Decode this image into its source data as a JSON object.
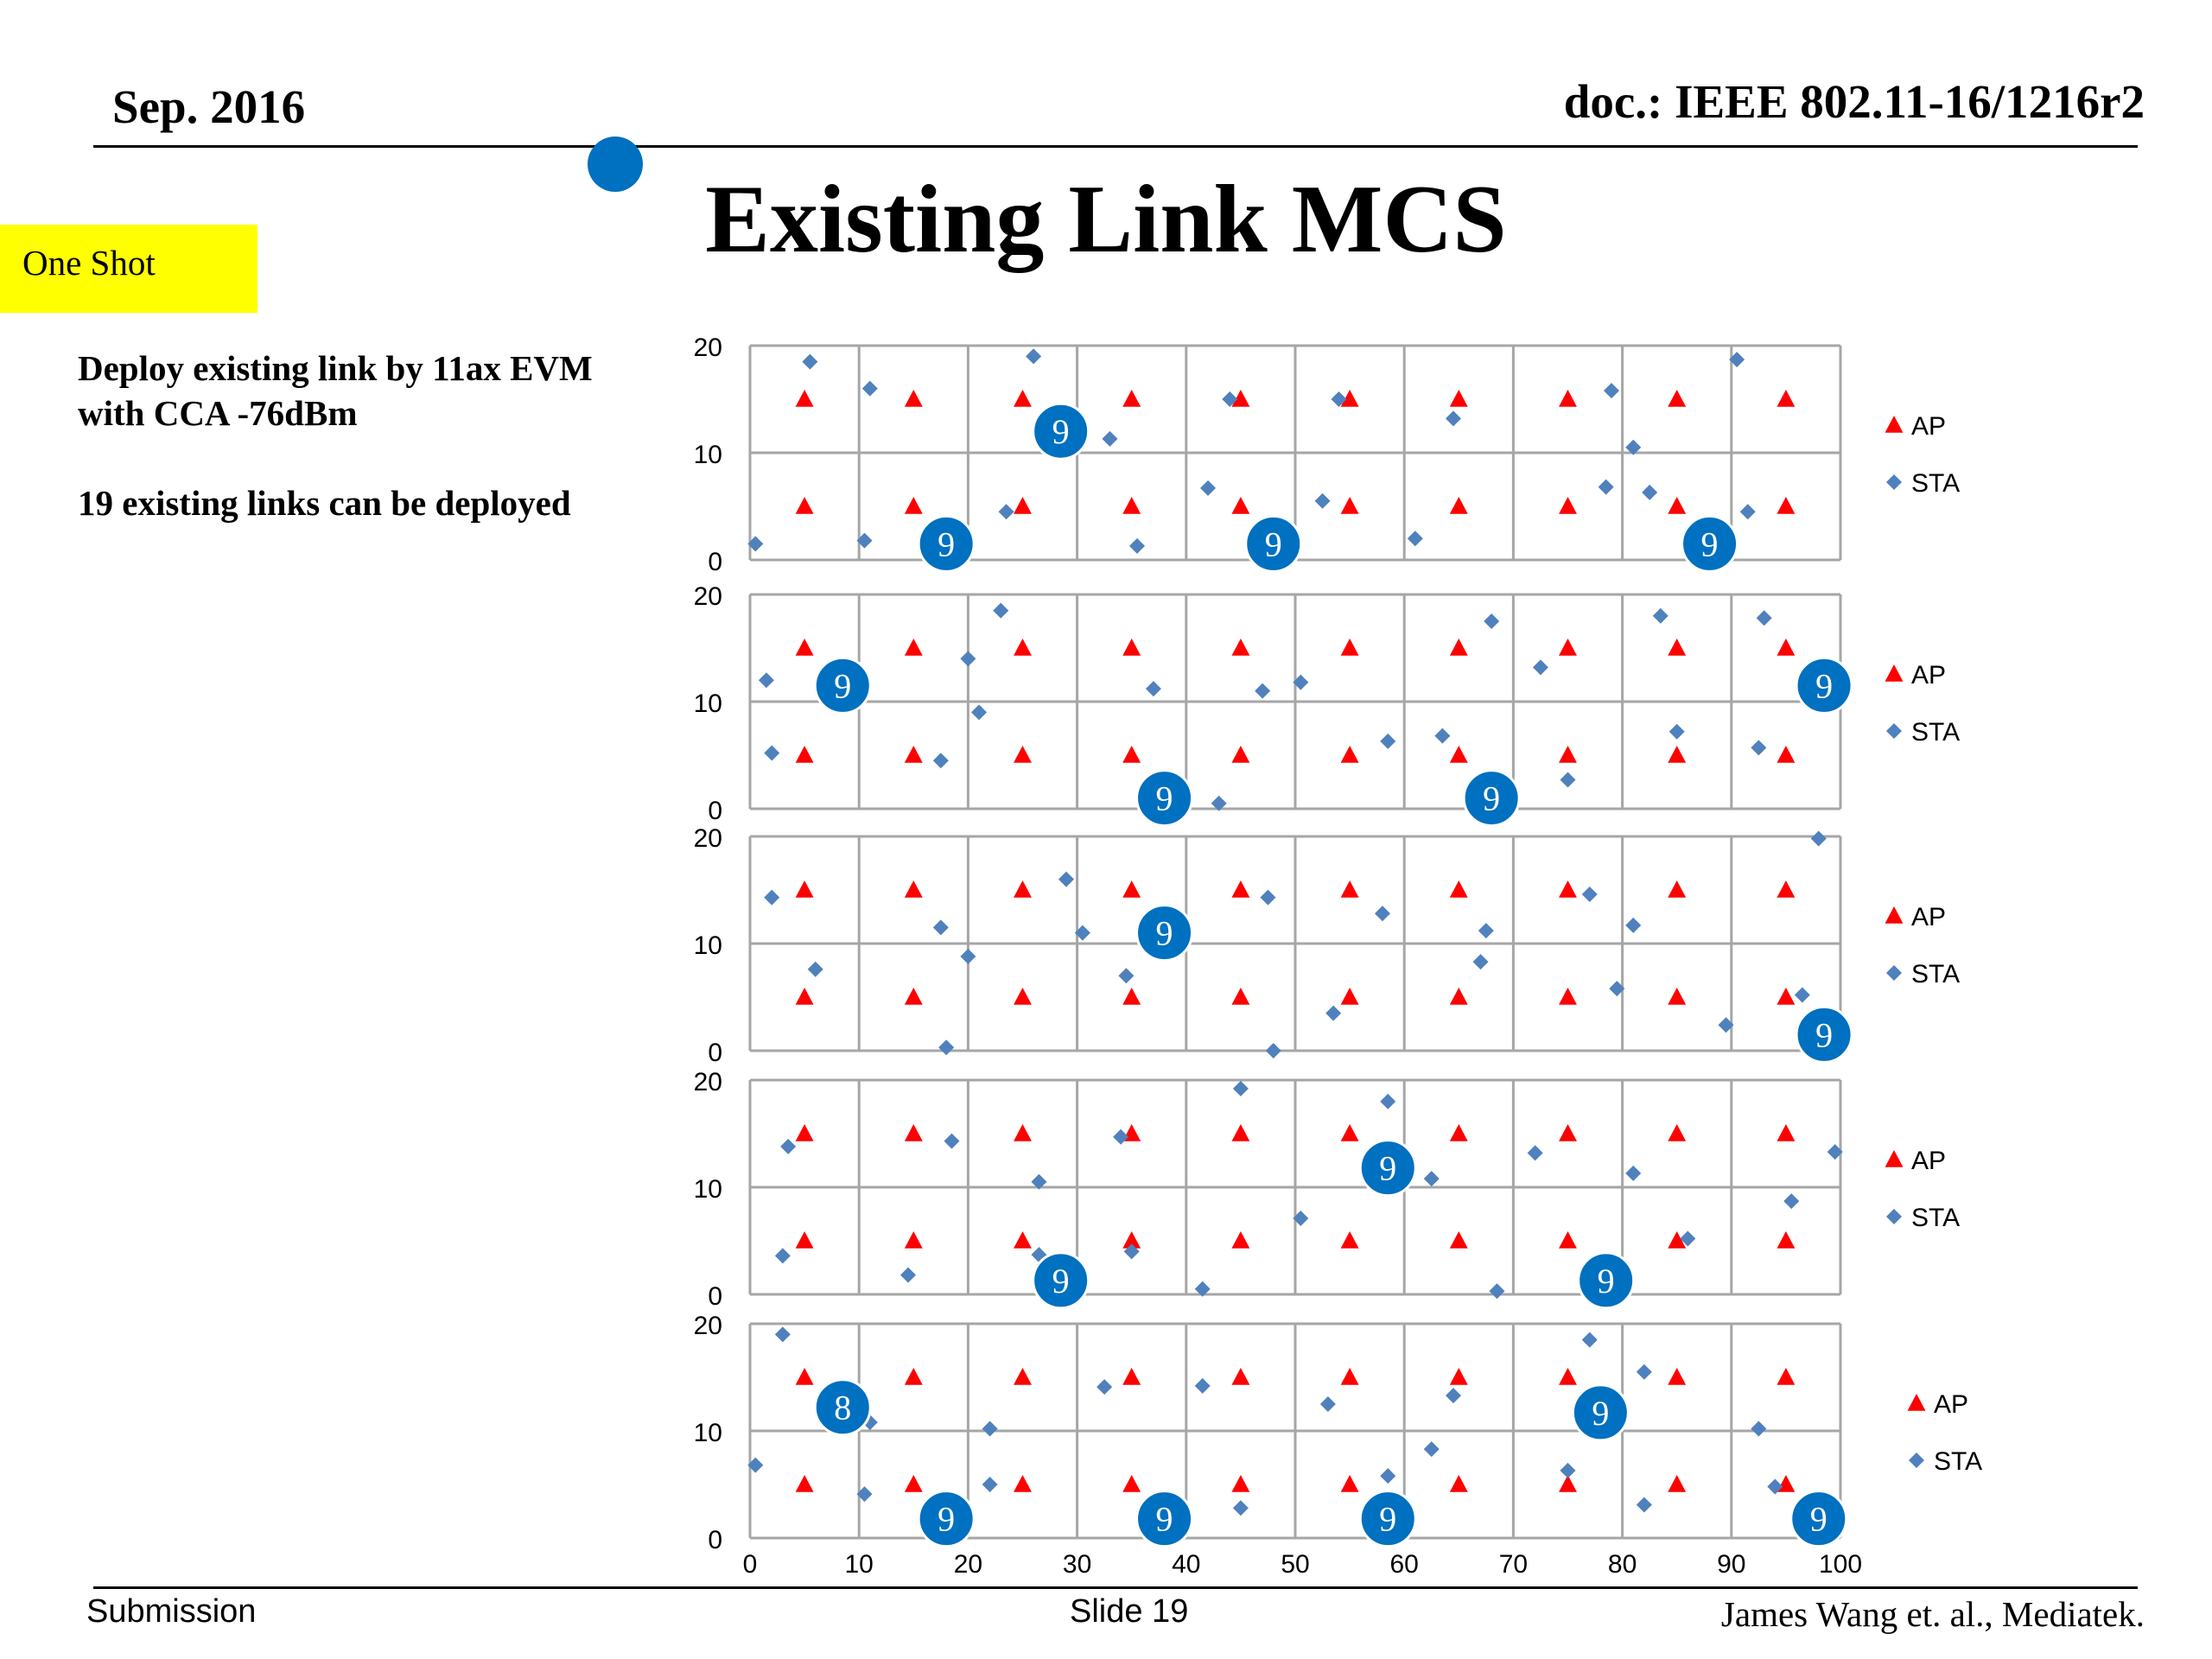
{
  "header": {
    "date": "Sep. 2016",
    "doc": "doc.: IEEE 802.11-16/1216r2"
  },
  "title": "Existing Link MCS",
  "tag": "One Shot",
  "description": {
    "line1": "Deploy existing link by 11ax EVM",
    "line2": "with CCA -76dBm",
    "line3": "19 existing links can be deployed"
  },
  "footer": {
    "left": "Submission",
    "center": "Slide 19",
    "right": "James Wang et. al., Mediatek."
  },
  "colors": {
    "ap": "#ff0000",
    "sta": "#4f81bd",
    "badge": "#0070c0",
    "grid": "#a6a6a6"
  },
  "chart_data": [
    {
      "type": "scatter",
      "xlim": [
        0,
        100
      ],
      "ylim": [
        0,
        20
      ],
      "yticks": [
        0,
        10,
        20
      ],
      "xticks": [],
      "grid": true,
      "legend_position": "right",
      "series": [
        {
          "name": "AP",
          "marker": "triangle",
          "points": [
            [
              5,
              15
            ],
            [
              15,
              15
            ],
            [
              25,
              15
            ],
            [
              35,
              15
            ],
            [
              45,
              15
            ],
            [
              55,
              15
            ],
            [
              65,
              15
            ],
            [
              75,
              15
            ],
            [
              85,
              15
            ],
            [
              95,
              15
            ],
            [
              5,
              5
            ],
            [
              15,
              5
            ],
            [
              25,
              5
            ],
            [
              35,
              5
            ],
            [
              45,
              5
            ],
            [
              55,
              5
            ],
            [
              65,
              5
            ],
            [
              75,
              5
            ],
            [
              85,
              5
            ],
            [
              95,
              5
            ]
          ]
        },
        {
          "name": "STA",
          "marker": "diamond",
          "points": [
            [
              0.5,
              1.5
            ],
            [
              5.5,
              18.5
            ],
            [
              11,
              16
            ],
            [
              10.5,
              1.8
            ],
            [
              26,
              19
            ],
            [
              33,
              11.3
            ],
            [
              35.5,
              1.3
            ],
            [
              23.5,
              4.5
            ],
            [
              44,
              15
            ],
            [
              42,
              6.7
            ],
            [
              52.5,
              5.5
            ],
            [
              54,
              15
            ],
            [
              64.5,
              13.2
            ],
            [
              61,
              2
            ],
            [
              79,
              15.8
            ],
            [
              81,
              10.5
            ],
            [
              78.5,
              6.8
            ],
            [
              82.5,
              6.3
            ],
            [
              91.5,
              4.5
            ],
            [
              90.5,
              18.7
            ]
          ]
        }
      ],
      "annotations": [
        {
          "label": "9",
          "x": 28.5,
          "y": 12
        },
        {
          "label": "9",
          "x": 18,
          "y": 1.5
        },
        {
          "label": "9",
          "x": 48,
          "y": 1.5
        },
        {
          "label": "9",
          "x": 88,
          "y": 1.5
        }
      ]
    },
    {
      "type": "scatter",
      "xlim": [
        0,
        100
      ],
      "ylim": [
        0,
        20
      ],
      "yticks": [
        0,
        10,
        20
      ],
      "xticks": [],
      "grid": true,
      "legend_position": "right",
      "series": [
        {
          "name": "AP",
          "marker": "triangle",
          "points": [
            [
              5,
              15
            ],
            [
              15,
              15
            ],
            [
              25,
              15
            ],
            [
              35,
              15
            ],
            [
              45,
              15
            ],
            [
              55,
              15
            ],
            [
              65,
              15
            ],
            [
              75,
              15
            ],
            [
              85,
              15
            ],
            [
              95,
              15
            ],
            [
              5,
              5
            ],
            [
              15,
              5
            ],
            [
              25,
              5
            ],
            [
              35,
              5
            ],
            [
              45,
              5
            ],
            [
              55,
              5
            ],
            [
              65,
              5
            ],
            [
              75,
              5
            ],
            [
              85,
              5
            ],
            [
              95,
              5
            ]
          ]
        },
        {
          "name": "STA",
          "marker": "diamond",
          "points": [
            [
              1.5,
              12
            ],
            [
              2,
              5.2
            ],
            [
              23,
              18.5
            ],
            [
              20,
              14
            ],
            [
              21,
              9
            ],
            [
              17.5,
              4.5
            ],
            [
              37,
              11.2
            ],
            [
              43,
              0.5
            ],
            [
              47,
              11
            ],
            [
              50.5,
              11.8
            ],
            [
              58.5,
              6.3
            ],
            [
              63.5,
              6.8
            ],
            [
              68,
              17.5
            ],
            [
              72.5,
              13.2
            ],
            [
              75,
              2.7
            ],
            [
              83.5,
              18
            ],
            [
              85,
              7.2
            ],
            [
              93,
              17.8
            ],
            [
              92.5,
              5.7
            ]
          ]
        }
      ],
      "annotations": [
        {
          "label": "9",
          "x": 8.5,
          "y": 11.5
        },
        {
          "label": "9",
          "x": 38,
          "y": 1
        },
        {
          "label": "9",
          "x": 68,
          "y": 1
        },
        {
          "label": "9",
          "x": 98.5,
          "y": 11.5
        }
      ]
    },
    {
      "type": "scatter",
      "xlim": [
        0,
        100
      ],
      "ylim": [
        0,
        20
      ],
      "yticks": [
        0,
        10,
        20
      ],
      "xticks": [],
      "grid": true,
      "legend_position": "right",
      "series": [
        {
          "name": "AP",
          "marker": "triangle",
          "points": [
            [
              5,
              15
            ],
            [
              15,
              15
            ],
            [
              25,
              15
            ],
            [
              35,
              15
            ],
            [
              45,
              15
            ],
            [
              55,
              15
            ],
            [
              65,
              15
            ],
            [
              75,
              15
            ],
            [
              85,
              15
            ],
            [
              95,
              15
            ],
            [
              5,
              5
            ],
            [
              15,
              5
            ],
            [
              25,
              5
            ],
            [
              35,
              5
            ],
            [
              45,
              5
            ],
            [
              55,
              5
            ],
            [
              65,
              5
            ],
            [
              75,
              5
            ],
            [
              85,
              5
            ],
            [
              95,
              5
            ]
          ]
        },
        {
          "name": "STA",
          "marker": "diamond",
          "points": [
            [
              2,
              14.3
            ],
            [
              6,
              7.6
            ],
            [
              17.5,
              11.5
            ],
            [
              18,
              0.3
            ],
            [
              20,
              8.8
            ],
            [
              29,
              16
            ],
            [
              30.5,
              11
            ],
            [
              34.5,
              7
            ],
            [
              47.5,
              14.3
            ],
            [
              48,
              0
            ],
            [
              53.5,
              3.5
            ],
            [
              58,
              12.8
            ],
            [
              67.5,
              11.2
            ],
            [
              67,
              8.3
            ],
            [
              77,
              14.6
            ],
            [
              79.5,
              5.8
            ],
            [
              81,
              11.7
            ],
            [
              89.5,
              2.4
            ],
            [
              96.5,
              5.2
            ],
            [
              98,
              19.8
            ]
          ]
        }
      ],
      "annotations": [
        {
          "label": "9",
          "x": 38,
          "y": 11
        },
        {
          "label": "9",
          "x": 98.5,
          "y": 1.5
        }
      ]
    },
    {
      "type": "scatter",
      "xlim": [
        0,
        100
      ],
      "ylim": [
        0,
        20
      ],
      "yticks": [
        0,
        10,
        20
      ],
      "xticks": [],
      "grid": true,
      "legend_position": "right",
      "series": [
        {
          "name": "AP",
          "marker": "triangle",
          "points": [
            [
              5,
              15
            ],
            [
              15,
              15
            ],
            [
              25,
              15
            ],
            [
              35,
              15
            ],
            [
              45,
              15
            ],
            [
              55,
              15
            ],
            [
              65,
              15
            ],
            [
              75,
              15
            ],
            [
              85,
              15
            ],
            [
              95,
              15
            ],
            [
              5,
              5
            ],
            [
              15,
              5
            ],
            [
              25,
              5
            ],
            [
              35,
              5
            ],
            [
              45,
              5
            ],
            [
              55,
              5
            ],
            [
              65,
              5
            ],
            [
              75,
              5
            ],
            [
              85,
              5
            ],
            [
              95,
              5
            ]
          ]
        },
        {
          "name": "STA",
          "marker": "diamond",
          "points": [
            [
              3.5,
              13.8
            ],
            [
              3,
              3.6
            ],
            [
              14.5,
              1.8
            ],
            [
              18.5,
              14.3
            ],
            [
              26.5,
              10.5
            ],
            [
              26.5,
              3.7
            ],
            [
              34,
              14.7
            ],
            [
              35,
              4
            ],
            [
              41.5,
              0.5
            ],
            [
              45,
              19.2
            ],
            [
              50.5,
              7.1
            ],
            [
              58.5,
              18
            ],
            [
              62.5,
              10.8
            ],
            [
              68.5,
              0.3
            ],
            [
              72,
              13.2
            ],
            [
              81,
              11.3
            ],
            [
              86,
              5.2
            ],
            [
              95.5,
              8.7
            ],
            [
              99.5,
              13.3
            ]
          ]
        }
      ],
      "annotations": [
        {
          "label": "9",
          "x": 58.5,
          "y": 11.8
        },
        {
          "label": "9",
          "x": 28.5,
          "y": 1.3
        },
        {
          "label": "9",
          "x": 78.5,
          "y": 1.3
        }
      ]
    },
    {
      "type": "scatter",
      "xlim": [
        0,
        100
      ],
      "ylim": [
        0,
        20
      ],
      "xticks": [
        0,
        10,
        20,
        30,
        40,
        50,
        60,
        70,
        80,
        90,
        100
      ],
      "yticks": [
        0,
        10,
        20
      ],
      "grid": true,
      "legend_position": "right",
      "series": [
        {
          "name": "AP",
          "marker": "triangle",
          "points": [
            [
              5,
              15
            ],
            [
              15,
              15
            ],
            [
              25,
              15
            ],
            [
              35,
              15
            ],
            [
              45,
              15
            ],
            [
              55,
              15
            ],
            [
              65,
              15
            ],
            [
              75,
              15
            ],
            [
              85,
              15
            ],
            [
              95,
              15
            ],
            [
              5,
              5
            ],
            [
              15,
              5
            ],
            [
              25,
              5
            ],
            [
              35,
              5
            ],
            [
              45,
              5
            ],
            [
              55,
              5
            ],
            [
              65,
              5
            ],
            [
              75,
              5
            ],
            [
              85,
              5
            ],
            [
              95,
              5
            ]
          ]
        },
        {
          "name": "STA",
          "marker": "diamond",
          "points": [
            [
              0.5,
              6.8
            ],
            [
              3,
              19
            ],
            [
              11,
              10.8
            ],
            [
              10.5,
              4.1
            ],
            [
              22,
              10.2
            ],
            [
              22,
              5
            ],
            [
              32.5,
              14.1
            ],
            [
              41.5,
              14.2
            ],
            [
              45,
              2.8
            ],
            [
              53,
              12.5
            ],
            [
              58.5,
              5.8
            ],
            [
              62.5,
              8.3
            ],
            [
              64.5,
              13.3
            ],
            [
              77,
              18.5
            ],
            [
              75,
              6.3
            ],
            [
              82,
              15.5
            ],
            [
              82,
              3.1
            ],
            [
              92.5,
              10.2
            ],
            [
              94,
              4.8
            ]
          ]
        }
      ],
      "annotations": [
        {
          "label": "8",
          "x": 8.5,
          "y": 12.2
        },
        {
          "label": "9",
          "x": 18,
          "y": 1.8
        },
        {
          "label": "9",
          "x": 38,
          "y": 1.8
        },
        {
          "label": "9",
          "x": 58.5,
          "y": 1.8
        },
        {
          "label": "9",
          "x": 78,
          "y": 11.7
        },
        {
          "label": "9",
          "x": 98,
          "y": 1.8
        }
      ]
    }
  ]
}
